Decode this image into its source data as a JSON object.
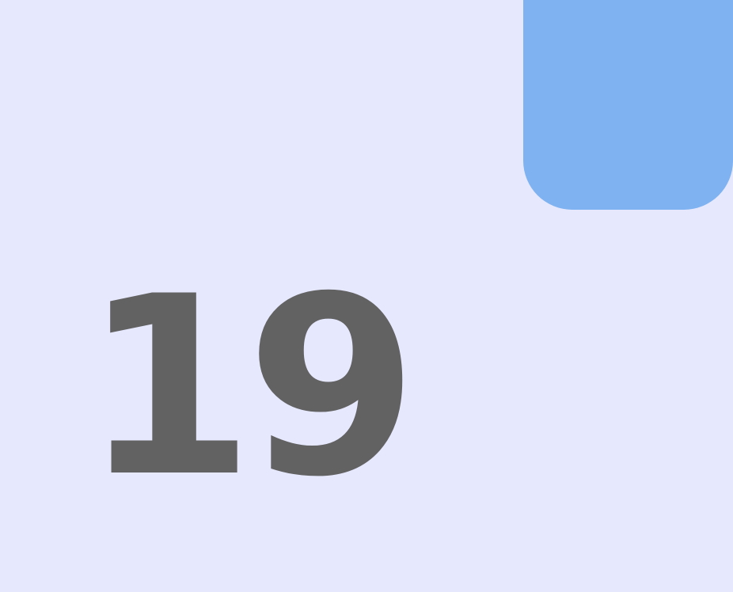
{
  "display": {
    "number": "19"
  },
  "colors": {
    "background": "#e6e8fe",
    "accent_tile": "#7eb2f1",
    "number_text": "#626262"
  }
}
